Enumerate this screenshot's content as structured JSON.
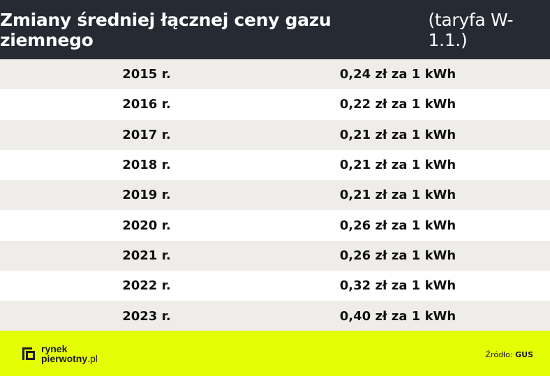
{
  "header": {
    "title_bold": "Zmiany średniej łącznej ceny gazu ziemnego",
    "title_light": "(taryfa W-1.1.)"
  },
  "rows": [
    {
      "year": "2015 r.",
      "price": "0,24 zł za 1 kWh"
    },
    {
      "year": "2016 r.",
      "price": "0,22 zł za 1 kWh"
    },
    {
      "year": "2017 r.",
      "price": "0,21 zł za 1 kWh"
    },
    {
      "year": "2018 r.",
      "price": "0,21 zł za 1 kWh"
    },
    {
      "year": "2019 r.",
      "price": "0,21 zł za 1 kWh"
    },
    {
      "year": "2020 r.",
      "price": "0,26 zł za 1 kWh"
    },
    {
      "year": "2021 r.",
      "price": "0,26 zł za 1 kWh"
    },
    {
      "year": "2022 r.",
      "price": "0,32 zł za 1 kWh"
    },
    {
      "year": "2023 r.",
      "price": "0,40 zł za 1 kWh"
    }
  ],
  "footer": {
    "logo_line1": "rynek",
    "logo_line2_bold": "pierwotny",
    "logo_line2_rest": ".pl",
    "source_label": "Źródło:",
    "source_value": "GUS"
  },
  "colors": {
    "header_bg": "#262a33",
    "row_alt_bg": "#efedea",
    "footer_bg": "#e4ff04"
  },
  "icons": {
    "logo": "rynekpierwotny-logo-mark"
  }
}
